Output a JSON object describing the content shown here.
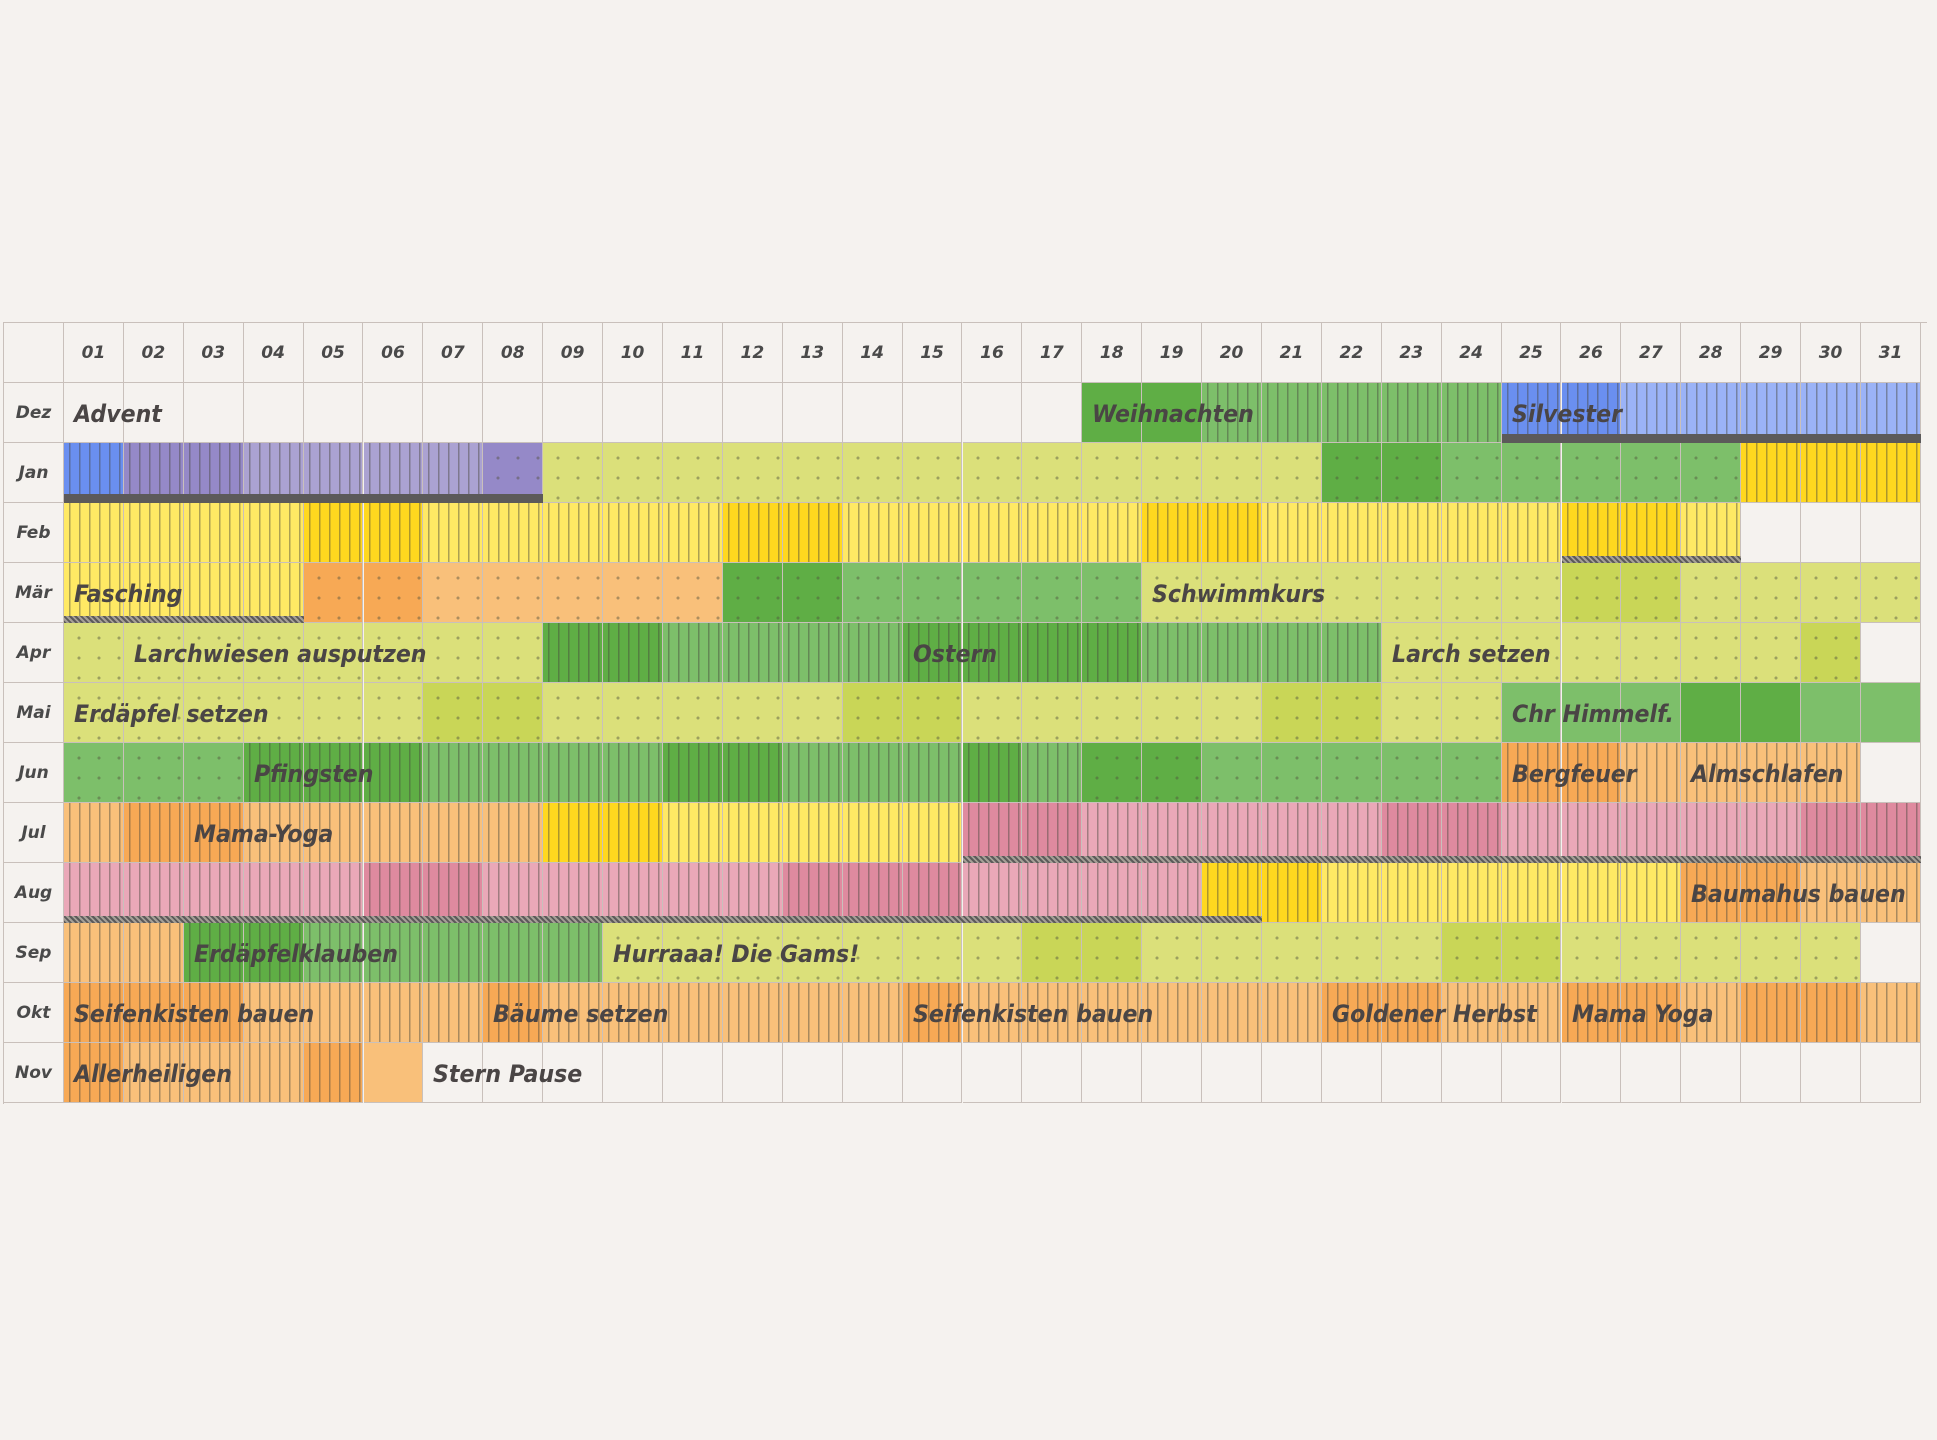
{
  "days": [
    "01",
    "02",
    "03",
    "04",
    "05",
    "06",
    "07",
    "08",
    "09",
    "10",
    "11",
    "12",
    "13",
    "14",
    "15",
    "16",
    "17",
    "18",
    "19",
    "20",
    "21",
    "22",
    "23",
    "24",
    "25",
    "26",
    "27",
    "28",
    "29",
    "30",
    "31"
  ],
  "months": [
    {
      "label": "Dez",
      "days": 31
    },
    {
      "label": "Jan",
      "days": 31
    },
    {
      "label": "Feb",
      "days": 28
    },
    {
      "label": "Mär",
      "days": 31
    },
    {
      "label": "Apr",
      "days": 30
    },
    {
      "label": "Mai",
      "days": 31
    },
    {
      "label": "Jun",
      "days": 30
    },
    {
      "label": "Jul",
      "days": 31
    },
    {
      "label": "Aug",
      "days": 31
    },
    {
      "label": "Sep",
      "days": 30
    },
    {
      "label": "Okt",
      "days": 31
    },
    {
      "label": "Nov",
      "days": 6
    }
  ],
  "palette": {
    "blue": "#6a8ff0",
    "blueL": "#9bb3f7",
    "purple": "#9589c8",
    "purpleL": "#aba2d2",
    "greenD": "#5fae45",
    "green": "#7dbf6a",
    "greenL": "#9ccf84",
    "lime": "#dbe07a",
    "limeD": "#c9d657",
    "yellow": "#ffe964",
    "yellowD": "#ffd81f",
    "orange": "#f9c07a",
    "orangeD": "#f7a955",
    "pink": "#eaa8b8",
    "pinkD": "#df8a9f"
  },
  "rows": [
    {
      "month": "Dez",
      "segments": [
        {
          "from": 18,
          "to": 19,
          "color": "greenD",
          "pattern": "none"
        },
        {
          "from": 20,
          "to": 24,
          "color": "green",
          "pattern": "waves"
        },
        {
          "from": 25,
          "to": 26,
          "color": "blue",
          "pattern": "waves"
        },
        {
          "from": 27,
          "to": 31,
          "color": "blueL",
          "pattern": "waves"
        }
      ]
    },
    {
      "month": "Jan",
      "segments": [
        {
          "from": 1,
          "to": 1,
          "color": "blue",
          "pattern": "waves"
        },
        {
          "from": 2,
          "to": 3,
          "color": "purple",
          "pattern": "waves"
        },
        {
          "from": 4,
          "to": 7,
          "color": "purpleL",
          "pattern": "waves"
        },
        {
          "from": 8,
          "to": 8,
          "color": "purple",
          "pattern": "dots"
        },
        {
          "from": 9,
          "to": 21,
          "color": "lime",
          "pattern": "dots"
        },
        {
          "from": 22,
          "to": 23,
          "color": "greenD",
          "pattern": "dots"
        },
        {
          "from": 24,
          "to": 28,
          "color": "green",
          "pattern": "dots"
        },
        {
          "from": 29,
          "to": 31,
          "color": "yellowD",
          "pattern": "waves"
        }
      ]
    },
    {
      "month": "Feb",
      "segments": [
        {
          "from": 1,
          "to": 4,
          "color": "yellow",
          "pattern": "waves"
        },
        {
          "from": 5,
          "to": 6,
          "color": "yellowD",
          "pattern": "waves"
        },
        {
          "from": 7,
          "to": 11,
          "color": "yellow",
          "pattern": "waves"
        },
        {
          "from": 12,
          "to": 13,
          "color": "yellowD",
          "pattern": "waves"
        },
        {
          "from": 14,
          "to": 18,
          "color": "yellow",
          "pattern": "waves"
        },
        {
          "from": 19,
          "to": 20,
          "color": "yellowD",
          "pattern": "waves"
        },
        {
          "from": 21,
          "to": 25,
          "color": "yellow",
          "pattern": "waves"
        },
        {
          "from": 26,
          "to": 27,
          "color": "yellowD",
          "pattern": "waves"
        },
        {
          "from": 28,
          "to": 28,
          "color": "yellow",
          "pattern": "waves"
        }
      ]
    },
    {
      "month": "Mär",
      "segments": [
        {
          "from": 1,
          "to": 4,
          "color": "yellow",
          "pattern": "waves"
        },
        {
          "from": 5,
          "to": 6,
          "color": "orangeD",
          "pattern": "dots"
        },
        {
          "from": 7,
          "to": 11,
          "color": "orange",
          "pattern": "dots"
        },
        {
          "from": 12,
          "to": 13,
          "color": "greenD",
          "pattern": "dots"
        },
        {
          "from": 14,
          "to": 18,
          "color": "green",
          "pattern": "dots"
        },
        {
          "from": 19,
          "to": 25,
          "color": "lime",
          "pattern": "dots"
        },
        {
          "from": 26,
          "to": 27,
          "color": "limeD",
          "pattern": "dots"
        },
        {
          "from": 28,
          "to": 31,
          "color": "lime",
          "pattern": "dots"
        }
      ]
    },
    {
      "month": "Apr",
      "segments": [
        {
          "from": 1,
          "to": 8,
          "color": "lime",
          "pattern": "dots"
        },
        {
          "from": 9,
          "to": 10,
          "color": "greenD",
          "pattern": "waves"
        },
        {
          "from": 11,
          "to": 14,
          "color": "green",
          "pattern": "waves"
        },
        {
          "from": 15,
          "to": 18,
          "color": "greenD",
          "pattern": "waves"
        },
        {
          "from": 19,
          "to": 22,
          "color": "green",
          "pattern": "waves"
        },
        {
          "from": 23,
          "to": 29,
          "color": "lime",
          "pattern": "dots"
        },
        {
          "from": 30,
          "to": 30,
          "color": "limeD",
          "pattern": "dots"
        }
      ]
    },
    {
      "month": "Mai",
      "segments": [
        {
          "from": 1,
          "to": 6,
          "color": "lime",
          "pattern": "dots"
        },
        {
          "from": 7,
          "to": 8,
          "color": "limeD",
          "pattern": "dots"
        },
        {
          "from": 9,
          "to": 13,
          "color": "lime",
          "pattern": "dots"
        },
        {
          "from": 14,
          "to": 15,
          "color": "limeD",
          "pattern": "dots"
        },
        {
          "from": 16,
          "to": 20,
          "color": "lime",
          "pattern": "dots"
        },
        {
          "from": 21,
          "to": 22,
          "color": "limeD",
          "pattern": "dots"
        },
        {
          "from": 23,
          "to": 24,
          "color": "lime",
          "pattern": "dots"
        },
        {
          "from": 25,
          "to": 27,
          "color": "green",
          "pattern": "none"
        },
        {
          "from": 28,
          "to": 29,
          "color": "greenD",
          "pattern": "none"
        },
        {
          "from": 30,
          "to": 31,
          "color": "green",
          "pattern": "none"
        }
      ]
    },
    {
      "month": "Jun",
      "segments": [
        {
          "from": 1,
          "to": 3,
          "color": "green",
          "pattern": "dots"
        },
        {
          "from": 4,
          "to": 6,
          "color": "greenD",
          "pattern": "waves"
        },
        {
          "from": 7,
          "to": 10,
          "color": "green",
          "pattern": "waves"
        },
        {
          "from": 11,
          "to": 12,
          "color": "greenD",
          "pattern": "waves"
        },
        {
          "from": 13,
          "to": 15,
          "color": "green",
          "pattern": "waves"
        },
        {
          "from": 16,
          "to": 16,
          "color": "greenD",
          "pattern": "waves"
        },
        {
          "from": 17,
          "to": 17,
          "color": "green",
          "pattern": "waves"
        },
        {
          "from": 18,
          "to": 19,
          "color": "greenD",
          "pattern": "dots"
        },
        {
          "from": 20,
          "to": 24,
          "color": "green",
          "pattern": "dots"
        },
        {
          "from": 25,
          "to": 26,
          "color": "orangeD",
          "pattern": "waves"
        },
        {
          "from": 27,
          "to": 30,
          "color": "orange",
          "pattern": "waves"
        }
      ]
    },
    {
      "month": "Jul",
      "segments": [
        {
          "from": 1,
          "to": 1,
          "color": "orange",
          "pattern": "waves"
        },
        {
          "from": 2,
          "to": 3,
          "color": "orangeD",
          "pattern": "waves"
        },
        {
          "from": 4,
          "to": 8,
          "color": "orange",
          "pattern": "waves"
        },
        {
          "from": 9,
          "to": 10,
          "color": "yellowD",
          "pattern": "waves"
        },
        {
          "from": 11,
          "to": 15,
          "color": "yellow",
          "pattern": "waves"
        },
        {
          "from": 16,
          "to": 17,
          "color": "pinkD",
          "pattern": "waves"
        },
        {
          "from": 18,
          "to": 22,
          "color": "pink",
          "pattern": "waves"
        },
        {
          "from": 23,
          "to": 24,
          "color": "pinkD",
          "pattern": "waves"
        },
        {
          "from": 25,
          "to": 29,
          "color": "pink",
          "pattern": "waves"
        },
        {
          "from": 30,
          "to": 31,
          "color": "pinkD",
          "pattern": "waves"
        }
      ]
    },
    {
      "month": "Aug",
      "segments": [
        {
          "from": 1,
          "to": 5,
          "color": "pink",
          "pattern": "waves"
        },
        {
          "from": 6,
          "to": 7,
          "color": "pinkD",
          "pattern": "waves"
        },
        {
          "from": 8,
          "to": 12,
          "color": "pink",
          "pattern": "waves"
        },
        {
          "from": 13,
          "to": 15,
          "color": "pinkD",
          "pattern": "waves"
        },
        {
          "from": 16,
          "to": 19,
          "color": "pink",
          "pattern": "waves"
        },
        {
          "from": 20,
          "to": 21,
          "color": "yellowD",
          "pattern": "waves"
        },
        {
          "from": 22,
          "to": 27,
          "color": "yellow",
          "pattern": "waves"
        },
        {
          "from": 28,
          "to": 29,
          "color": "orangeD",
          "pattern": "waves"
        },
        {
          "from": 30,
          "to": 31,
          "color": "orange",
          "pattern": "waves"
        }
      ]
    },
    {
      "month": "Sep",
      "segments": [
        {
          "from": 1,
          "to": 2,
          "color": "orange",
          "pattern": "waves"
        },
        {
          "from": 3,
          "to": 4,
          "color": "greenD",
          "pattern": "waves"
        },
        {
          "from": 5,
          "to": 9,
          "color": "green",
          "pattern": "waves"
        },
        {
          "from": 10,
          "to": 16,
          "color": "lime",
          "pattern": "dots"
        },
        {
          "from": 17,
          "to": 18,
          "color": "limeD",
          "pattern": "dots"
        },
        {
          "from": 19,
          "to": 23,
          "color": "lime",
          "pattern": "dots"
        },
        {
          "from": 24,
          "to": 25,
          "color": "limeD",
          "pattern": "dots"
        },
        {
          "from": 26,
          "to": 30,
          "color": "lime",
          "pattern": "dots"
        }
      ]
    },
    {
      "month": "Okt",
      "segments": [
        {
          "from": 1,
          "to": 3,
          "color": "orangeD",
          "pattern": "waves"
        },
        {
          "from": 4,
          "to": 7,
          "color": "orange",
          "pattern": "waves"
        },
        {
          "from": 8,
          "to": 8,
          "color": "orangeD",
          "pattern": "waves"
        },
        {
          "from": 9,
          "to": 14,
          "color": "orange",
          "pattern": "waves"
        },
        {
          "from": 15,
          "to": 15,
          "color": "orangeD",
          "pattern": "waves"
        },
        {
          "from": 16,
          "to": 21,
          "color": "orange",
          "pattern": "waves"
        },
        {
          "from": 22,
          "to": 23,
          "color": "orangeD",
          "pattern": "waves"
        },
        {
          "from": 24,
          "to": 25,
          "color": "orange",
          "pattern": "waves"
        },
        {
          "from": 26,
          "to": 27,
          "color": "orangeD",
          "pattern": "waves"
        },
        {
          "from": 28,
          "to": 28,
          "color": "orange",
          "pattern": "waves"
        },
        {
          "from": 29,
          "to": 30,
          "color": "orangeD",
          "pattern": "waves"
        },
        {
          "from": 31,
          "to": 31,
          "color": "orange",
          "pattern": "waves"
        }
      ]
    },
    {
      "month": "Nov",
      "segments": [
        {
          "from": 1,
          "to": 1,
          "color": "orangeD",
          "pattern": "waves"
        },
        {
          "from": 2,
          "to": 4,
          "color": "orange",
          "pattern": "waves"
        },
        {
          "from": 5,
          "to": 5,
          "color": "orangeD",
          "pattern": "waves"
        },
        {
          "from": 6,
          "to": 6,
          "color": "orange",
          "pattern": "none"
        }
      ]
    }
  ],
  "bands": [
    {
      "row": 1,
      "from": 1,
      "to": 8,
      "style": "solid"
    },
    {
      "row": 0,
      "from": 25,
      "to": 31,
      "style": "solid"
    },
    {
      "row": 2,
      "from": 26,
      "to": 28,
      "style": "hatch"
    },
    {
      "row": 3,
      "from": 1,
      "to": 4,
      "style": "hatch"
    },
    {
      "row": 7,
      "from": 16,
      "to": 31,
      "style": "hatch"
    },
    {
      "row": 8,
      "from": 1,
      "to": 20,
      "style": "hatch"
    }
  ],
  "labels": [
    {
      "row": 0,
      "day": 1,
      "text": "Advent"
    },
    {
      "row": 0,
      "day": 18,
      "text": "Weihnachten"
    },
    {
      "row": 0,
      "day": 25,
      "text": "Silvester"
    },
    {
      "row": 3,
      "day": 1,
      "text": "Fasching"
    },
    {
      "row": 3,
      "day": 19,
      "text": "Schwimmkurs"
    },
    {
      "row": 4,
      "day": 2,
      "text": "Larchwiesen ausputzen"
    },
    {
      "row": 4,
      "day": 15,
      "text": "Ostern"
    },
    {
      "row": 4,
      "day": 23,
      "text": "Larch setzen"
    },
    {
      "row": 5,
      "day": 1,
      "text": "Erdäpfel setzen"
    },
    {
      "row": 5,
      "day": 25,
      "text": "Chr Himmelf."
    },
    {
      "row": 6,
      "day": 4,
      "text": "Pfingsten"
    },
    {
      "row": 6,
      "day": 25,
      "text": "Bergfeuer"
    },
    {
      "row": 6,
      "day": 28,
      "text": "Almschlafen"
    },
    {
      "row": 7,
      "day": 3,
      "text": "Mama-Yoga"
    },
    {
      "row": 8,
      "day": 28,
      "text": "Baumahus bauen"
    },
    {
      "row": 9,
      "day": 3,
      "text": "Erdäpfelklauben"
    },
    {
      "row": 9,
      "day": 10,
      "text": "Hurraaa! Die Gams!"
    },
    {
      "row": 10,
      "day": 1,
      "text": "Seifenkisten bauen"
    },
    {
      "row": 10,
      "day": 8,
      "text": "Bäume setzen"
    },
    {
      "row": 10,
      "day": 15,
      "text": "Seifenkisten bauen"
    },
    {
      "row": 10,
      "day": 22,
      "text": "Goldener Herbst"
    },
    {
      "row": 10,
      "day": 26,
      "text": "Mama Yoga"
    },
    {
      "row": 11,
      "day": 1,
      "text": "Allerheiligen"
    },
    {
      "row": 11,
      "day": 7,
      "text": "Stern Pause"
    }
  ]
}
